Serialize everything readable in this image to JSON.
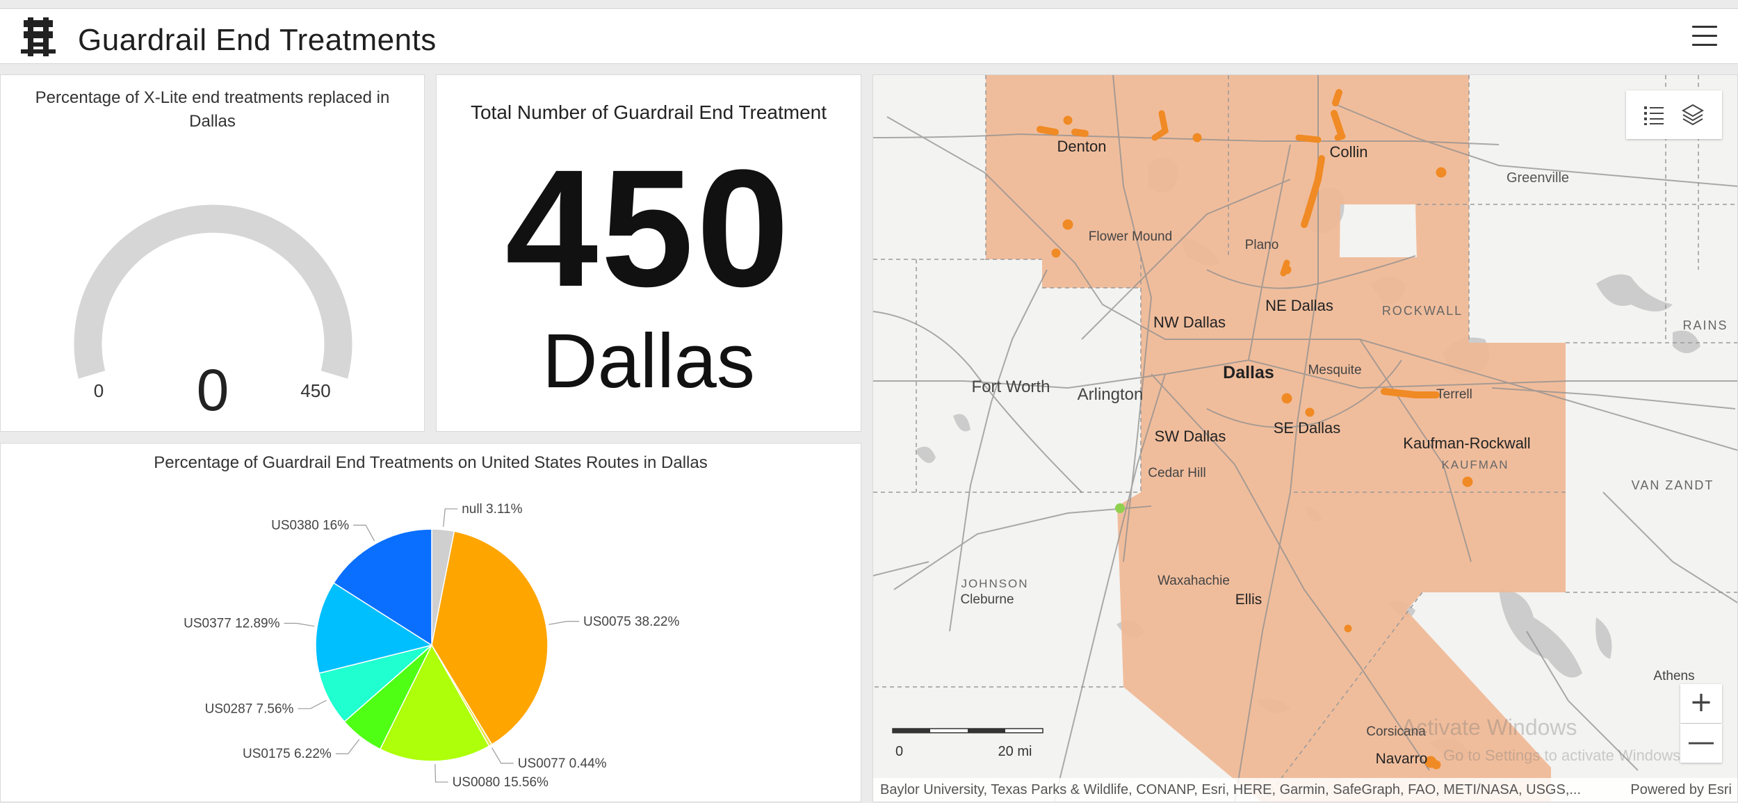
{
  "header": {
    "title": "Guardrail End Treatments",
    "logo_icon": "guardrail-icon",
    "menu_icon": "hamburger-menu-icon"
  },
  "gauge": {
    "title": "Percentage of X-Lite end treatments replaced in Dallas",
    "value": "0",
    "min_label": "0",
    "max_label": "450",
    "fill_fraction": 0,
    "track_color": "#d6d6d6"
  },
  "total": {
    "title": "Total Number of Guardrail End Treatment",
    "value": "450",
    "district": "Dallas"
  },
  "pie_chart": {
    "title": "Percentage of Guardrail End Treatments on United States Routes in Dallas"
  },
  "chart_data": {
    "type": "pie",
    "title": "Percentage of Guardrail End Treatments on United States Routes in Dallas",
    "slices": [
      {
        "label": "null",
        "value": 3.11,
        "text": "null 3.11%",
        "color": "#cfcfcf"
      },
      {
        "label": "US0075",
        "value": 38.22,
        "text": "US0075 38.22%",
        "color": "#ffa500"
      },
      {
        "label": "US0077",
        "value": 0.44,
        "text": "US0077 0.44%",
        "color": "#e8e24a"
      },
      {
        "label": "US0080",
        "value": 15.56,
        "text": "US0080 15.56%",
        "color": "#adff0a"
      },
      {
        "label": "US0175",
        "value": 6.22,
        "text": "US0175 6.22%",
        "color": "#4fff14"
      },
      {
        "label": "US0287",
        "value": 7.56,
        "text": "US0287 7.56%",
        "color": "#1fffd0"
      },
      {
        "label": "US0377",
        "value": 12.89,
        "text": "US0377 12.89%",
        "color": "#00bfff"
      },
      {
        "label": "US0380",
        "value": 16,
        "text": "US0380 16%",
        "color": "#0a6fff"
      }
    ]
  },
  "map": {
    "labels": {
      "denton": "Denton",
      "collin": "Collin",
      "greenville": "Greenville",
      "flower_mound": "Flower Mound",
      "plano": "Plano",
      "nw_dallas": "NW Dallas",
      "ne_dallas": "NE Dallas",
      "rockwall": "ROCKWALL",
      "rains": "RAINS",
      "fort_worth": "Fort Worth",
      "arlington": "Arlington",
      "dallas": "Dallas",
      "mesquite": "Mesquite",
      "terrell": "Terrell",
      "sw_dallas": "SW Dallas",
      "se_dallas": "SE Dallas",
      "kaufman_rockwall": "Kaufman-Rockwall",
      "kaufman": "KAUFMAN",
      "cedar_hill": "Cedar Hill",
      "van_zandt": "VAN ZANDT",
      "johnson": "JOHNSON",
      "cleburne": "Cleburne",
      "waxahachie": "Waxahachie",
      "ellis": "Ellis",
      "athens": "Athens",
      "corsicana": "Corsicana",
      "navarro": "Navarro"
    },
    "scale_left": "0",
    "scale_right": "20 mi",
    "legend_icon": "legend-list-icon",
    "layers_icon": "layers-icon",
    "zoom_in": "+",
    "zoom_out": "—",
    "attribution": "Baylor University, Texas Parks & Wildlife, CONANP, Esri, HERE, Garmin, SafeGraph, FAO, METI/NASA, USGS,...",
    "powered_by": "Powered by Esri",
    "watermark_title": "Activate Windows",
    "watermark_sub": "Go to Settings to activate Windows.",
    "district_color": "#f0b895",
    "point_color": "#f08a24"
  }
}
